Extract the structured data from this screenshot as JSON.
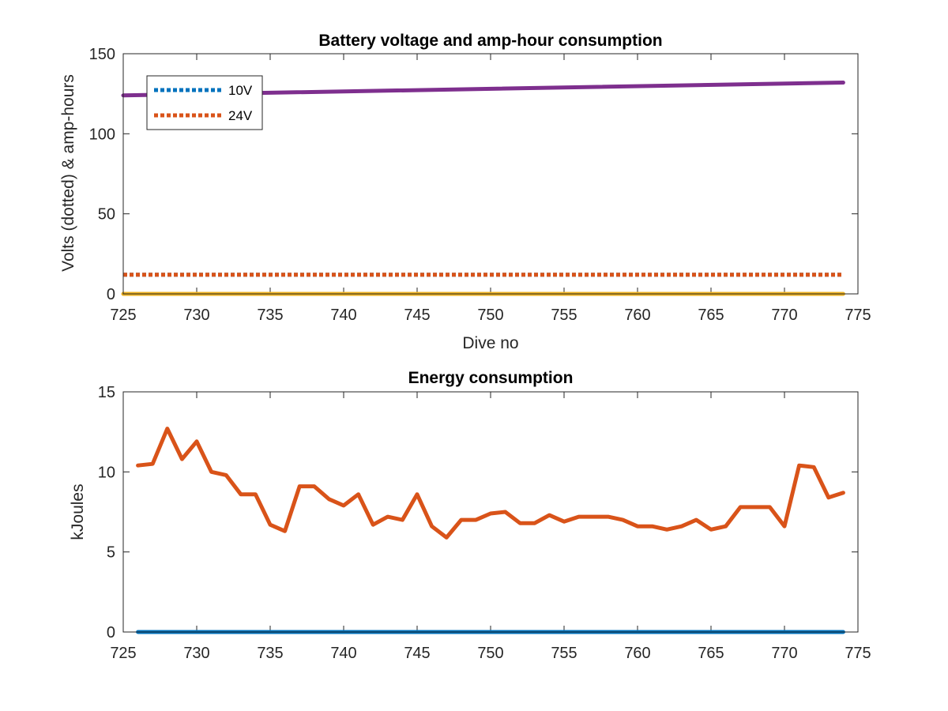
{
  "chart_data": [
    {
      "type": "line",
      "title": "Battery voltage and amp-hour consumption",
      "xlabel": "Dive no",
      "ylabel": "Volts (dotted) & amp-hours",
      "xlim": [
        725,
        775
      ],
      "ylim": [
        0,
        150
      ],
      "x_ticks": [
        725,
        730,
        735,
        740,
        745,
        750,
        755,
        760,
        765,
        770,
        775
      ],
      "y_ticks": [
        0,
        50,
        100,
        150
      ],
      "grid": false,
      "legend_location": "top-left",
      "series": [
        {
          "name": "10V",
          "color": "#0072BD",
          "style": "dotted",
          "legend": true,
          "x": [
            725,
            774
          ],
          "y": [
            12,
            12
          ]
        },
        {
          "name": "24V",
          "color": "#D95319",
          "style": "dotted",
          "legend": true,
          "x": [
            725,
            774
          ],
          "y": [
            12,
            12
          ]
        },
        {
          "color": "#EDB120",
          "style": "solid",
          "legend": false,
          "x": [
            725,
            774
          ],
          "y": [
            0,
            0
          ]
        },
        {
          "color": "#7E2F8E",
          "style": "solid",
          "legend": false,
          "x": [
            725,
            774
          ],
          "y": [
            124,
            132
          ]
        }
      ]
    },
    {
      "type": "line",
      "title": "Energy consumption",
      "xlabel": "",
      "ylabel": "kJoules",
      "xlim": [
        725,
        775
      ],
      "ylim": [
        0,
        15
      ],
      "x_ticks": [
        725,
        730,
        735,
        740,
        745,
        750,
        755,
        760,
        765,
        770,
        775
      ],
      "y_ticks": [
        0,
        5,
        10,
        15
      ],
      "grid": false,
      "series": [
        {
          "color": "#0072BD",
          "style": "solid",
          "x": [
            726,
            774
          ],
          "y": [
            0,
            0
          ]
        },
        {
          "color": "#D95319",
          "style": "solid",
          "x": [
            726,
            727,
            728,
            729,
            730,
            731,
            732,
            733,
            734,
            735,
            736,
            737,
            738,
            739,
            740,
            741,
            742,
            743,
            744,
            745,
            746,
            747,
            748,
            749,
            750,
            751,
            752,
            753,
            754,
            755,
            756,
            757,
            758,
            759,
            760,
            761,
            762,
            763,
            764,
            765,
            766,
            767,
            768,
            769,
            770,
            771,
            772,
            773,
            774
          ],
          "y": [
            10.4,
            10.5,
            12.7,
            10.8,
            11.9,
            10.0,
            9.8,
            8.6,
            8.6,
            6.7,
            6.3,
            9.1,
            9.1,
            8.3,
            7.9,
            8.6,
            6.7,
            7.2,
            7.0,
            8.6,
            6.6,
            5.9,
            7.0,
            7.0,
            7.4,
            7.5,
            6.8,
            6.8,
            7.3,
            6.9,
            7.2,
            7.2,
            7.2,
            7.0,
            6.6,
            6.6,
            6.4,
            6.6,
            7.0,
            6.4,
            6.6,
            7.8,
            7.8,
            7.8,
            6.6,
            10.4,
            10.3,
            8.4,
            8.7
          ]
        }
      ]
    }
  ]
}
